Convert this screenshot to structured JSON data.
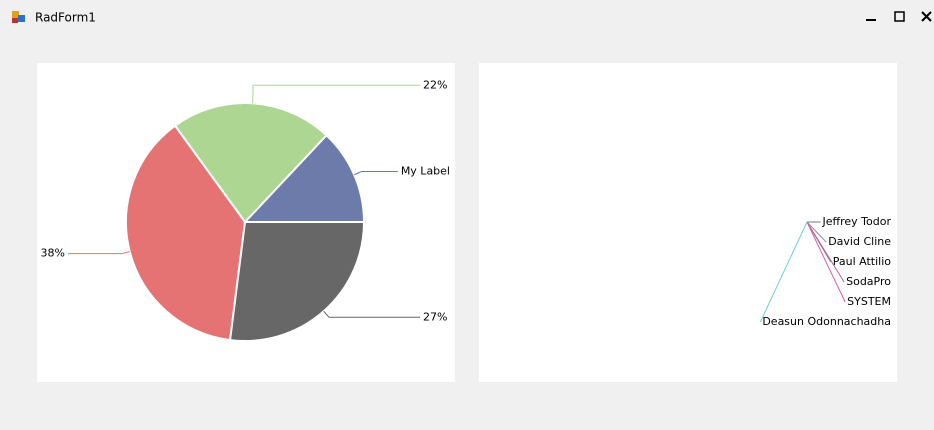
{
  "window": {
    "title": "RadForm1"
  },
  "chart_data": [
    {
      "type": "pie",
      "values": [
        13,
        22,
        38,
        27
      ],
      "labels": [
        "My Label",
        "22%",
        "38%",
        "27%"
      ],
      "colors": [
        "#6d7bab",
        "#aed693",
        "#e57373",
        "#676767"
      ]
    },
    {
      "type": "pie",
      "categories": [
        "Jeffrey Todor",
        "David Cline",
        "Paul Attilio",
        "SodaPro",
        "SYSTEM",
        "Deasun Odonnachadha"
      ],
      "values": [
        0,
        0,
        0,
        0,
        0,
        0
      ],
      "colors": [
        "#777777",
        "#9a8a9a",
        "#5f8f8f",
        "#c060a0",
        "#d060b0",
        "#70d0d0"
      ]
    }
  ]
}
